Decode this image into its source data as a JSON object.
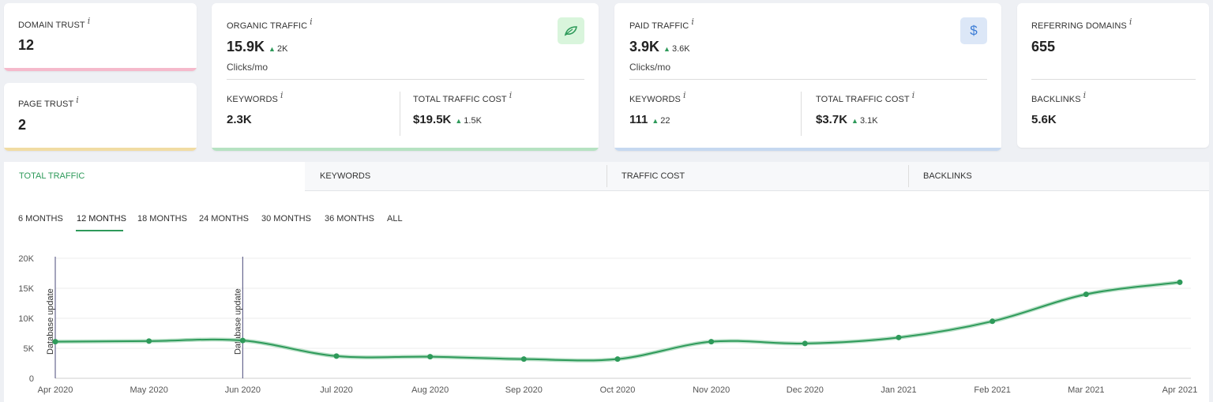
{
  "cards": {
    "domain_trust": {
      "label": "DOMAIN TRUST",
      "value": "12",
      "info": "i"
    },
    "page_trust": {
      "label": "PAGE TRUST",
      "value": "2",
      "info": "i"
    },
    "organic": {
      "label": "ORGANIC TRAFFIC",
      "info": "i",
      "value": "15.9K",
      "delta": "2K",
      "unit": "Clicks/mo",
      "keywords_label": "KEYWORDS",
      "keywords_value": "2.3K",
      "cost_label": "TOTAL TRAFFIC COST",
      "cost_value": "$19.5K",
      "cost_delta": "1.5K"
    },
    "paid": {
      "label": "PAID TRAFFIC",
      "info": "i",
      "value": "3.9K",
      "delta": "3.6K",
      "unit": "Clicks/mo",
      "badge": "$",
      "keywords_label": "KEYWORDS",
      "keywords_value": "111",
      "keywords_delta": "22",
      "cost_label": "TOTAL TRAFFIC COST",
      "cost_value": "$3.7K",
      "cost_delta": "3.1K"
    },
    "referring": {
      "label": "REFERRING DOMAINS",
      "info": "i",
      "value": "655",
      "backlinks_label": "BACKLINKS",
      "backlinks_value": "5.6K"
    }
  },
  "tabs": [
    "TOTAL TRAFFIC",
    "KEYWORDS",
    "TRAFFIC COST",
    "BACKLINKS"
  ],
  "periods": [
    "6 MONTHS",
    "12 MONTHS",
    "18 MONTHS",
    "24 MONTHS",
    "30 MONTHS",
    "36 MONTHS",
    "ALL"
  ],
  "active_period": "12 MONTHS",
  "colors": {
    "accent": "#2e9a5a",
    "domain_bar": "#f5b9cb",
    "page_bar": "#f1dca3",
    "organic_bar": "#b6e2c2",
    "paid_bar": "#c6d8f0",
    "organic_badge_bg": "#d9f5dc",
    "paid_badge_bg": "#dce7f7"
  },
  "chart_data": {
    "type": "line",
    "categories": [
      "Apr 2020",
      "May 2020",
      "Jun 2020",
      "Jul 2020",
      "Aug 2020",
      "Sep 2020",
      "Oct 2020",
      "Nov 2020",
      "Dec 2020",
      "Jan 2021",
      "Feb 2021",
      "Mar 2021",
      "Apr 2021"
    ],
    "values": [
      6100,
      6200,
      6300,
      3700,
      3600,
      3200,
      3200,
      6100,
      5800,
      6800,
      9500,
      14000,
      16000
    ],
    "yticks": [
      "0",
      "5K",
      "10K",
      "15K",
      "20K"
    ],
    "ylim": [
      0,
      20000
    ],
    "grid": true,
    "annotations": [
      {
        "category": "Apr 2020",
        "text": "Database update"
      },
      {
        "category": "Jun 2020",
        "text": "Database update"
      }
    ]
  }
}
